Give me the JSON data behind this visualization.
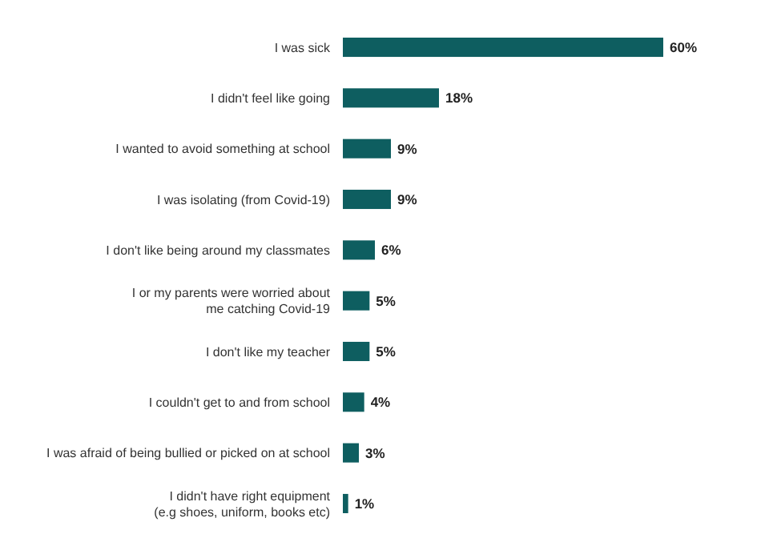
{
  "chart_data": {
    "type": "bar",
    "orientation": "horizontal",
    "categories": [
      "I was sick",
      "I didn't feel like going",
      "I wanted to avoid something at school",
      "I was isolating (from Covid-19)",
      "I don't like being around my classmates",
      "I or my parents were worried about\nme catching Covid-19",
      "I don't like my teacher",
      "I couldn't get to and from school",
      "I was afraid of being bullied or picked on at school",
      "I didn't have right equipment\n(e.g shoes, uniform, books etc)"
    ],
    "values": [
      60,
      18,
      9,
      9,
      6,
      5,
      5,
      4,
      3,
      1
    ],
    "value_labels": [
      "60%",
      "18%",
      "9%",
      "9%",
      "6%",
      "5%",
      "5%",
      "4%",
      "3%",
      "1%"
    ],
    "color": "#0e5e60"
  }
}
